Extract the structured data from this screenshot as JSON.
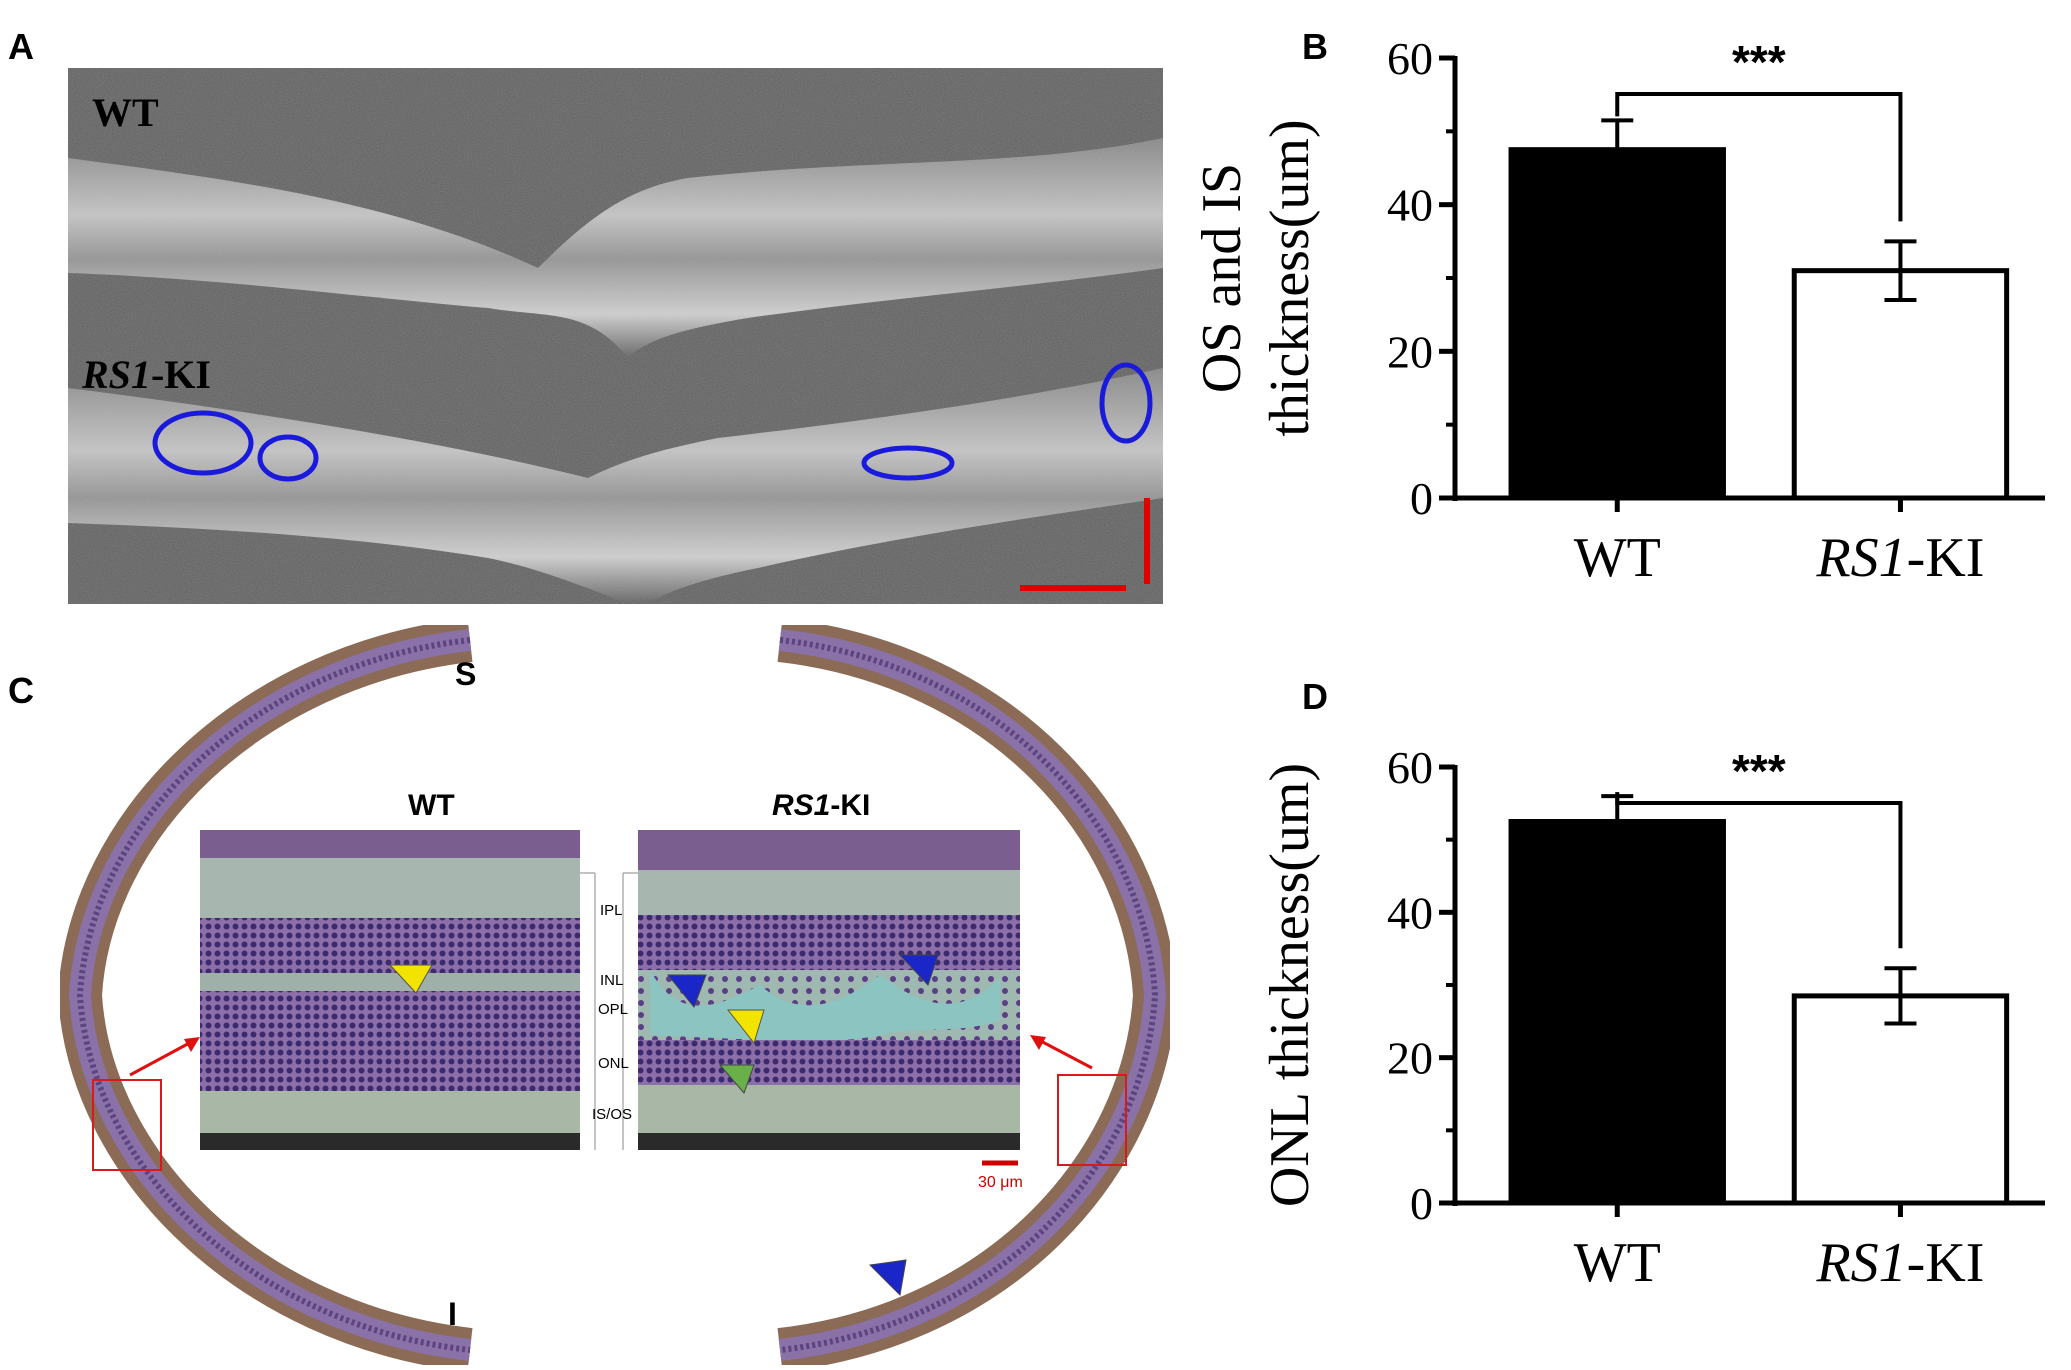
{
  "panels": {
    "A": {
      "letter": "A",
      "label_wt": "WT",
      "label_ki_italic": "RS1",
      "label_ki_suffix": "-KI",
      "circle_color": "#1a1adc",
      "scale_color": "#e00000"
    },
    "B": {
      "letter": "B"
    },
    "C": {
      "letter": "C",
      "wt_title": "WT",
      "ki_title_italic": "RS1",
      "ki_title_suffix": "-KI",
      "side_superior": "S",
      "side_inferior": "I",
      "layers": [
        "IPL",
        "INL",
        "OPL",
        "ONL",
        "IS/OS"
      ],
      "scale_text": "30 μm"
    },
    "D": {
      "letter": "D"
    }
  },
  "chart_data": [
    {
      "type": "bar",
      "categories": [
        "WT",
        "RS1-KI"
      ],
      "category_display": [
        {
          "main": "WT",
          "italic": ""
        },
        {
          "main": "-KI",
          "italic": "RS1"
        }
      ],
      "values": [
        47.5,
        31.0
      ],
      "errors": [
        4.0,
        4.0
      ],
      "ylabel_line1": "OS and IS",
      "ylabel_line2": "thickness(um)",
      "ylim": [
        0,
        60
      ],
      "yticks": [
        0,
        20,
        40,
        60
      ],
      "significance": "***",
      "bar_colors": [
        "#000000",
        "#ffffff"
      ]
    },
    {
      "type": "bar",
      "categories": [
        "WT",
        "RS1-KI"
      ],
      "category_display": [
        {
          "main": "WT",
          "italic": ""
        },
        {
          "main": "-KI",
          "italic": "RS1"
        }
      ],
      "values": [
        52.5,
        28.5
      ],
      "errors": [
        3.5,
        3.8
      ],
      "ylabel_line1": "ONL thickness(um)",
      "ylabel_line2": "",
      "ylim": [
        0,
        60
      ],
      "yticks": [
        0,
        20,
        40,
        60
      ],
      "significance": "***",
      "bar_colors": [
        "#000000",
        "#ffffff"
      ]
    }
  ]
}
